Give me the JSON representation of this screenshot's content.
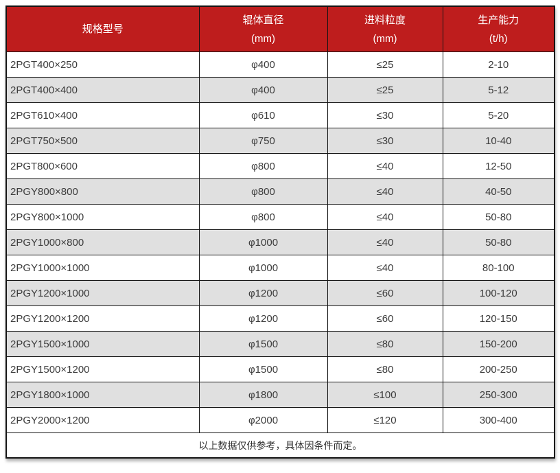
{
  "theme": {
    "header_bg": "#be1d1d",
    "header_text": "#ffffff",
    "row_bg": "#ffffff",
    "row_alt_bg": "#e0e0e0",
    "border_color": "#141414",
    "body_text": "#3c3c3c"
  },
  "table": {
    "columns": [
      {
        "label": "规格型号",
        "unit": ""
      },
      {
        "label": "辊体直径",
        "unit": "(mm)"
      },
      {
        "label": "进料粒度",
        "unit": "(mm)"
      },
      {
        "label": "生产能力",
        "unit": "(t/h)"
      }
    ],
    "rows": [
      [
        "2PGT400×250",
        "φ400",
        "≤25",
        "2-10"
      ],
      [
        "2PGT400×400",
        "φ400",
        "≤25",
        "5-12"
      ],
      [
        "2PGT610×400",
        "φ610",
        "≤30",
        "5-20"
      ],
      [
        "2PGT750×500",
        "φ750",
        "≤30",
        "10-40"
      ],
      [
        "2PGT800×600",
        "φ800",
        "≤40",
        "12-50"
      ],
      [
        "2PGY800×800",
        "φ800",
        "≤40",
        "40-50"
      ],
      [
        "2PGY800×1000",
        "φ800",
        "≤40",
        "50-80"
      ],
      [
        "2PGY1000×800",
        "φ1000",
        "≤40",
        "50-80"
      ],
      [
        "2PGY1000×1000",
        "φ1000",
        "≤40",
        "80-100"
      ],
      [
        "2PGY1200×1000",
        "φ1200",
        "≤60",
        "100-120"
      ],
      [
        "2PGY1200×1200",
        "φ1200",
        "≤60",
        "120-150"
      ],
      [
        "2PGY1500×1000",
        "φ1500",
        "≤80",
        "150-200"
      ],
      [
        "2PGY1500×1200",
        "φ1500",
        "≤80",
        "200-250"
      ],
      [
        "2PGY1800×1000",
        "φ1800",
        "≤100",
        "250-300"
      ],
      [
        "2PGY2000×1200",
        "φ2000",
        "≤120",
        "300-400"
      ]
    ],
    "footnote": "以上数据仅供参考，具体因条件而定。"
  }
}
